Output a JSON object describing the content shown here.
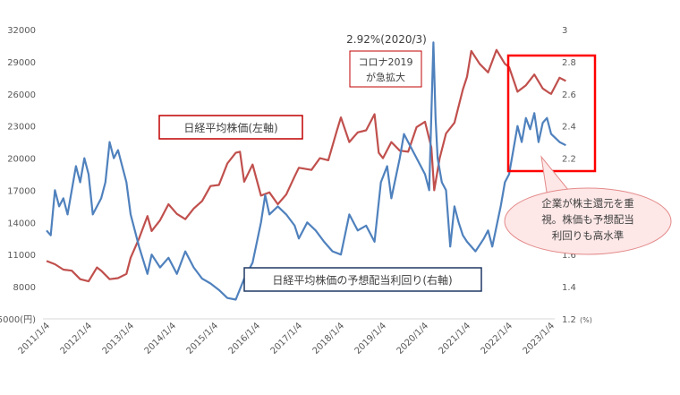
{
  "chart_data": {
    "type": "line",
    "x_tick_labels": [
      "2011/1/4",
      "2012/1/4",
      "2013/1/4",
      "2014/1/4",
      "2015/1/4",
      "2016/1/4",
      "2017/1/4",
      "2018/1/4",
      "2019/1/4",
      "2020/1/4",
      "2021/1/4",
      "2022/1/4",
      "2023/1/4"
    ],
    "y_left": {
      "ticks": [
        "32000",
        "29000",
        "26000",
        "23000",
        "20000",
        "17000",
        "14000",
        "11000",
        "8000",
        "5000(円)"
      ],
      "ylim": [
        5000,
        32000
      ]
    },
    "y_right": {
      "ticks": [
        "3",
        "2.8",
        "2.6",
        "2.4",
        "2.2",
        "2",
        "1.8",
        "1.6",
        "1.4",
        "1.2"
      ],
      "unit": "(%)",
      "ylim": [
        1.2,
        3.0
      ]
    },
    "series": [
      {
        "name": "日経平均株価(左軸)",
        "axis": "left",
        "color": "#c0504d",
        "points": [
          [
            2011.0,
            10400
          ],
          [
            2011.2,
            10100
          ],
          [
            2011.4,
            9600
          ],
          [
            2011.6,
            9500
          ],
          [
            2011.8,
            8700
          ],
          [
            2012.0,
            8500
          ],
          [
            2012.2,
            9800
          ],
          [
            2012.3,
            9500
          ],
          [
            2012.5,
            8700
          ],
          [
            2012.7,
            8800
          ],
          [
            2012.9,
            9200
          ],
          [
            2013.0,
            10700
          ],
          [
            2013.2,
            12500
          ],
          [
            2013.4,
            14600
          ],
          [
            2013.5,
            13200
          ],
          [
            2013.7,
            14200
          ],
          [
            2013.9,
            15700
          ],
          [
            2014.1,
            14800
          ],
          [
            2014.3,
            14300
          ],
          [
            2014.5,
            15300
          ],
          [
            2014.7,
            16000
          ],
          [
            2014.9,
            17400
          ],
          [
            2015.1,
            17500
          ],
          [
            2015.3,
            19500
          ],
          [
            2015.5,
            20500
          ],
          [
            2015.6,
            20600
          ],
          [
            2015.7,
            17800
          ],
          [
            2015.9,
            19400
          ],
          [
            2016.1,
            16500
          ],
          [
            2016.3,
            16800
          ],
          [
            2016.5,
            15700
          ],
          [
            2016.7,
            16600
          ],
          [
            2016.9,
            18300
          ],
          [
            2017.0,
            19100
          ],
          [
            2017.3,
            18900
          ],
          [
            2017.5,
            20000
          ],
          [
            2017.7,
            19800
          ],
          [
            2017.9,
            22500
          ],
          [
            2018.0,
            23800
          ],
          [
            2018.2,
            21500
          ],
          [
            2018.4,
            22400
          ],
          [
            2018.6,
            22600
          ],
          [
            2018.8,
            24100
          ],
          [
            2018.9,
            20500
          ],
          [
            2019.0,
            20000
          ],
          [
            2019.2,
            21500
          ],
          [
            2019.4,
            20700
          ],
          [
            2019.6,
            20600
          ],
          [
            2019.8,
            22900
          ],
          [
            2020.0,
            23400
          ],
          [
            2020.15,
            21000
          ],
          [
            2020.22,
            17000
          ],
          [
            2020.35,
            20000
          ],
          [
            2020.5,
            22300
          ],
          [
            2020.7,
            23300
          ],
          [
            2020.9,
            26400
          ],
          [
            2021.0,
            27600
          ],
          [
            2021.1,
            30000
          ],
          [
            2021.3,
            28800
          ],
          [
            2021.5,
            28000
          ],
          [
            2021.7,
            30100
          ],
          [
            2021.9,
            28800
          ],
          [
            2022.0,
            28500
          ],
          [
            2022.2,
            26200
          ],
          [
            2022.4,
            26800
          ],
          [
            2022.6,
            27800
          ],
          [
            2022.8,
            26500
          ],
          [
            2022.95,
            26100
          ],
          [
            2023.0,
            26000
          ],
          [
            2023.2,
            27500
          ],
          [
            2023.35,
            27200
          ]
        ]
      },
      {
        "name": "日経平均株価の予想配当利回り(右軸)",
        "axis": "right",
        "color": "#4f81bd",
        "points": [
          [
            2011.0,
            1.75
          ],
          [
            2011.1,
            1.72
          ],
          [
            2011.2,
            2.0
          ],
          [
            2011.3,
            1.9
          ],
          [
            2011.4,
            1.95
          ],
          [
            2011.5,
            1.85
          ],
          [
            2011.7,
            2.15
          ],
          [
            2011.8,
            2.05
          ],
          [
            2011.9,
            2.2
          ],
          [
            2012.0,
            2.1
          ],
          [
            2012.1,
            1.85
          ],
          [
            2012.3,
            1.95
          ],
          [
            2012.4,
            2.05
          ],
          [
            2012.5,
            2.3
          ],
          [
            2012.6,
            2.2
          ],
          [
            2012.7,
            2.25
          ],
          [
            2012.9,
            2.05
          ],
          [
            2013.0,
            1.85
          ],
          [
            2013.2,
            1.65
          ],
          [
            2013.4,
            1.48
          ],
          [
            2013.5,
            1.6
          ],
          [
            2013.7,
            1.52
          ],
          [
            2013.9,
            1.58
          ],
          [
            2014.1,
            1.48
          ],
          [
            2014.3,
            1.62
          ],
          [
            2014.5,
            1.52
          ],
          [
            2014.7,
            1.45
          ],
          [
            2014.9,
            1.42
          ],
          [
            2015.1,
            1.38
          ],
          [
            2015.3,
            1.33
          ],
          [
            2015.5,
            1.32
          ],
          [
            2015.7,
            1.45
          ],
          [
            2015.9,
            1.55
          ],
          [
            2016.1,
            1.8
          ],
          [
            2016.2,
            1.97
          ],
          [
            2016.3,
            1.85
          ],
          [
            2016.5,
            1.9
          ],
          [
            2016.7,
            1.85
          ],
          [
            2016.9,
            1.78
          ],
          [
            2017.0,
            1.7
          ],
          [
            2017.2,
            1.8
          ],
          [
            2017.4,
            1.75
          ],
          [
            2017.6,
            1.68
          ],
          [
            2017.8,
            1.62
          ],
          [
            2018.0,
            1.6
          ],
          [
            2018.2,
            1.85
          ],
          [
            2018.4,
            1.75
          ],
          [
            2018.6,
            1.78
          ],
          [
            2018.8,
            1.68
          ],
          [
            2018.95,
            2.05
          ],
          [
            2019.1,
            2.15
          ],
          [
            2019.2,
            1.95
          ],
          [
            2019.4,
            2.2
          ],
          [
            2019.5,
            2.35
          ],
          [
            2019.7,
            2.25
          ],
          [
            2019.9,
            2.15
          ],
          [
            2020.0,
            2.1
          ],
          [
            2020.1,
            2.0
          ],
          [
            2020.2,
            2.92
          ],
          [
            2020.25,
            2.45
          ],
          [
            2020.3,
            2.2
          ],
          [
            2020.4,
            2.05
          ],
          [
            2020.5,
            2.0
          ],
          [
            2020.6,
            1.65
          ],
          [
            2020.7,
            1.9
          ],
          [
            2020.8,
            1.8
          ],
          [
            2020.9,
            1.72
          ],
          [
            2021.0,
            1.68
          ],
          [
            2021.2,
            1.62
          ],
          [
            2021.4,
            1.7
          ],
          [
            2021.5,
            1.75
          ],
          [
            2021.6,
            1.65
          ],
          [
            2021.8,
            1.9
          ],
          [
            2021.9,
            2.05
          ],
          [
            2022.0,
            2.1
          ],
          [
            2022.2,
            2.4
          ],
          [
            2022.3,
            2.3
          ],
          [
            2022.4,
            2.45
          ],
          [
            2022.5,
            2.38
          ],
          [
            2022.6,
            2.48
          ],
          [
            2022.7,
            2.3
          ],
          [
            2022.8,
            2.42
          ],
          [
            2022.9,
            2.45
          ],
          [
            2023.0,
            2.35
          ],
          [
            2023.2,
            2.3
          ],
          [
            2023.35,
            2.28
          ]
        ]
      }
    ],
    "annotations": {
      "peak_label": "2.92%(2020/3)",
      "corona_line1": "コロナ2019",
      "corona_line2": "が急拡大",
      "nikkei_legend": "日経平均株価(左軸)",
      "yield_legend": "日経平均株価の予想配当利回り(右軸)",
      "callout_line1": "企業が株主還元を重",
      "callout_line2": "視。株価も予想配当",
      "callout_line3": "利回りも高水準"
    },
    "grid": false,
    "highlight_color": "#ff0000"
  }
}
